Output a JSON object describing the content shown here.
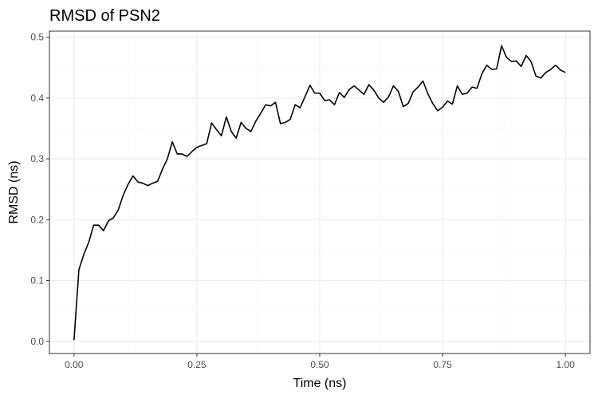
{
  "chart_data": {
    "type": "line",
    "title": "RMSD of PSN2",
    "xlabel": "Time (ns)",
    "ylabel": "RMSD (ns)",
    "xlim": [
      -0.05,
      1.05
    ],
    "ylim": [
      -0.02,
      0.51
    ],
    "x_ticks": [
      0.0,
      0.25,
      0.5,
      0.75,
      1.0
    ],
    "x_tick_labels": [
      "0.00",
      "0.25",
      "0.50",
      "0.75",
      "1.00"
    ],
    "y_ticks": [
      0.0,
      0.1,
      0.2,
      0.3,
      0.4,
      0.5
    ],
    "y_tick_labels": [
      "0.0",
      "0.1",
      "0.2",
      "0.3",
      "0.4",
      "0.5"
    ],
    "grid": true,
    "series": [
      {
        "color": "#000000",
        "x": [
          0.0,
          0.01,
          0.02,
          0.03,
          0.04,
          0.05,
          0.06,
          0.07,
          0.08,
          0.09,
          0.1,
          0.11,
          0.12,
          0.13,
          0.14,
          0.15,
          0.16,
          0.17,
          0.18,
          0.19,
          0.2,
          0.21,
          0.22,
          0.23,
          0.24,
          0.25,
          0.26,
          0.27,
          0.28,
          0.29,
          0.3,
          0.31,
          0.32,
          0.33,
          0.34,
          0.35,
          0.36,
          0.37,
          0.38,
          0.39,
          0.4,
          0.41,
          0.42,
          0.43,
          0.44,
          0.45,
          0.46,
          0.47,
          0.48,
          0.49,
          0.5,
          0.51,
          0.52,
          0.53,
          0.54,
          0.55,
          0.56,
          0.57,
          0.58,
          0.59,
          0.6,
          0.61,
          0.62,
          0.63,
          0.64,
          0.65,
          0.66,
          0.67,
          0.68,
          0.69,
          0.7,
          0.71,
          0.72,
          0.73,
          0.74,
          0.75,
          0.76,
          0.77,
          0.78,
          0.79,
          0.8,
          0.81,
          0.82,
          0.83,
          0.84,
          0.85,
          0.86,
          0.87,
          0.88,
          0.89,
          0.9,
          0.91,
          0.92,
          0.93,
          0.94,
          0.95,
          0.96,
          0.97,
          0.98,
          0.99,
          1.0
        ],
        "y": [
          0.002,
          0.118,
          0.143,
          0.163,
          0.191,
          0.191,
          0.182,
          0.198,
          0.203,
          0.216,
          0.24,
          0.258,
          0.272,
          0.262,
          0.26,
          0.256,
          0.26,
          0.263,
          0.283,
          0.3,
          0.328,
          0.308,
          0.308,
          0.304,
          0.312,
          0.319,
          0.322,
          0.325,
          0.359,
          0.348,
          0.338,
          0.369,
          0.345,
          0.334,
          0.36,
          0.35,
          0.345,
          0.362,
          0.375,
          0.389,
          0.387,
          0.393,
          0.358,
          0.36,
          0.365,
          0.389,
          0.384,
          0.402,
          0.421,
          0.408,
          0.408,
          0.396,
          0.397,
          0.389,
          0.409,
          0.401,
          0.414,
          0.42,
          0.413,
          0.406,
          0.422,
          0.413,
          0.4,
          0.393,
          0.402,
          0.42,
          0.411,
          0.386,
          0.391,
          0.41,
          0.418,
          0.428,
          0.407,
          0.391,
          0.379,
          0.385,
          0.395,
          0.39,
          0.42,
          0.406,
          0.408,
          0.418,
          0.416,
          0.44,
          0.454,
          0.447,
          0.448,
          0.486,
          0.467,
          0.46,
          0.461,
          0.452,
          0.47,
          0.46,
          0.436,
          0.433,
          0.442,
          0.447,
          0.454,
          0.446,
          0.442
        ]
      }
    ]
  }
}
